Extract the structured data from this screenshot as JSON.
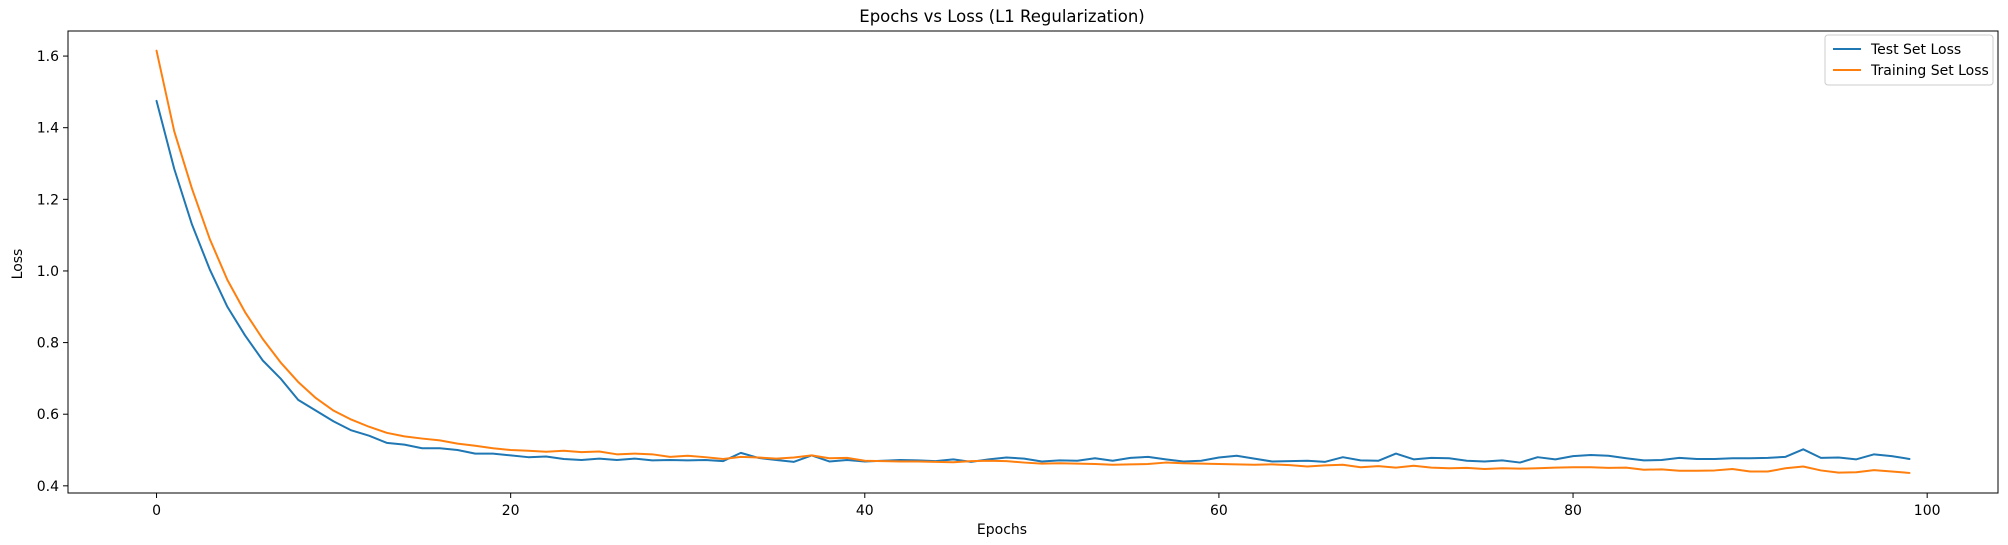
{
  "chart_data": {
    "type": "line",
    "title": "Epochs vs Loss (L1 Regularization)",
    "xlabel": "Epochs",
    "ylabel": "Loss",
    "xlim": [
      -5,
      104
    ],
    "ylim": [
      0.38,
      1.67
    ],
    "xticks": [
      0,
      20,
      40,
      60,
      80,
      100
    ],
    "yticks": [
      0.4,
      0.6,
      0.8,
      1.0,
      1.2,
      1.4,
      1.6
    ],
    "xtick_labels": [
      "0",
      "20",
      "40",
      "60",
      "80",
      "100"
    ],
    "ytick_labels": [
      "0.4",
      "0.6",
      "0.8",
      "1.0",
      "1.2",
      "1.4",
      "1.6"
    ],
    "grid": false,
    "legend_position": "top-right",
    "x": [
      0,
      1,
      2,
      3,
      4,
      5,
      6,
      7,
      8,
      9,
      10,
      11,
      12,
      13,
      14,
      15,
      16,
      17,
      18,
      19,
      20,
      21,
      22,
      23,
      24,
      25,
      26,
      27,
      28,
      29,
      30,
      31,
      32,
      33,
      34,
      35,
      36,
      37,
      38,
      39,
      40,
      41,
      42,
      43,
      44,
      45,
      46,
      47,
      48,
      49,
      50,
      51,
      52,
      53,
      54,
      55,
      56,
      57,
      58,
      59,
      60,
      61,
      62,
      63,
      64,
      65,
      66,
      67,
      68,
      69,
      70,
      71,
      72,
      73,
      74,
      75,
      76,
      77,
      78,
      79,
      80,
      81,
      82,
      83,
      84,
      85,
      86,
      87,
      88,
      89,
      90,
      91,
      92,
      93,
      94,
      95,
      96,
      97,
      98,
      99
    ],
    "series": [
      {
        "name": "Test Set Loss",
        "color": "#1f77b4",
        "values": [
          1.475,
          1.285,
          1.13,
          1.005,
          0.9,
          0.82,
          0.75,
          0.7,
          0.64,
          0.61,
          0.58,
          0.555,
          0.54,
          0.52,
          0.515,
          0.505,
          0.505,
          0.5,
          0.49,
          0.49,
          0.485,
          0.48,
          0.482,
          0.475,
          0.472,
          0.476,
          0.472,
          0.476,
          0.471,
          0.472,
          0.471,
          0.472,
          0.469,
          0.492,
          0.478,
          0.472,
          0.467,
          0.485,
          0.468,
          0.472,
          0.468,
          0.47,
          0.472,
          0.471,
          0.469,
          0.474,
          0.467,
          0.474,
          0.479,
          0.476,
          0.468,
          0.471,
          0.47,
          0.477,
          0.47,
          0.478,
          0.481,
          0.474,
          0.468,
          0.47,
          0.479,
          0.484,
          0.476,
          0.468,
          0.469,
          0.47,
          0.467,
          0.48,
          0.471,
          0.47,
          0.49,
          0.474,
          0.478,
          0.477,
          0.47,
          0.468,
          0.471,
          0.465,
          0.48,
          0.474,
          0.483,
          0.486,
          0.484,
          0.477,
          0.471,
          0.472,
          0.478,
          0.475,
          0.475,
          0.477,
          0.477,
          0.478,
          0.481,
          0.502,
          0.478,
          0.479,
          0.474,
          0.488,
          0.483,
          0.475
        ]
      },
      {
        "name": "Training Set Loss",
        "color": "#ff7f0e",
        "values": [
          1.615,
          1.39,
          1.23,
          1.09,
          0.975,
          0.885,
          0.81,
          0.745,
          0.69,
          0.645,
          0.61,
          0.585,
          0.565,
          0.548,
          0.538,
          0.532,
          0.527,
          0.518,
          0.512,
          0.505,
          0.5,
          0.498,
          0.495,
          0.498,
          0.494,
          0.496,
          0.488,
          0.49,
          0.488,
          0.481,
          0.484,
          0.48,
          0.475,
          0.481,
          0.479,
          0.476,
          0.479,
          0.485,
          0.477,
          0.478,
          0.47,
          0.469,
          0.468,
          0.468,
          0.467,
          0.466,
          0.469,
          0.47,
          0.469,
          0.465,
          0.462,
          0.463,
          0.462,
          0.461,
          0.459,
          0.46,
          0.461,
          0.465,
          0.463,
          0.462,
          0.461,
          0.46,
          0.459,
          0.46,
          0.458,
          0.454,
          0.457,
          0.459,
          0.452,
          0.455,
          0.451,
          0.456,
          0.451,
          0.449,
          0.45,
          0.447,
          0.449,
          0.448,
          0.449,
          0.451,
          0.452,
          0.452,
          0.45,
          0.451,
          0.445,
          0.446,
          0.442,
          0.442,
          0.443,
          0.447,
          0.44,
          0.44,
          0.449,
          0.454,
          0.443,
          0.437,
          0.438,
          0.444,
          0.44,
          0.436
        ]
      }
    ]
  }
}
